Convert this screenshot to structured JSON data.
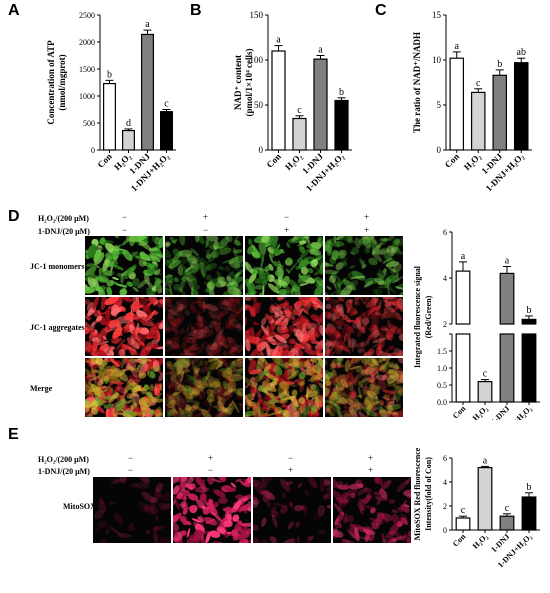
{
  "panels": {
    "A": {
      "label": "A",
      "ylabel": [
        "Concentration of ATP",
        "(nmol/mgprot)"
      ],
      "categories": [
        "Con",
        "H₂O₂",
        "1-DNJ",
        "1-DNJ+H₂O₂"
      ],
      "yticks": [
        "0",
        "500",
        "1000",
        "1500",
        "2000",
        "2500"
      ],
      "letters": [
        "b",
        "d",
        "a",
        "c"
      ],
      "colors": [
        "#ffffff",
        "#d3d3d3",
        "#808080",
        "#000000"
      ]
    },
    "B": {
      "label": "B",
      "ylabel": [
        "NAD⁺ content",
        "(pmol/1×10⁴ cells)"
      ],
      "categories": [
        "Con",
        "H₂O₂",
        "1-DNJ",
        "1-DNJ+H₂O₂"
      ],
      "yticks": [
        "0",
        "50",
        "100",
        "150"
      ],
      "letters": [
        "a",
        "c",
        "a",
        "b"
      ],
      "colors": [
        "#ffffff",
        "#d3d3d3",
        "#808080",
        "#000000"
      ]
    },
    "C": {
      "label": "C",
      "ylabel": [
        "The ratio of NAD⁺/NADH"
      ],
      "categories": [
        "Con",
        "H₂O₂",
        "1-DNJ",
        "1-DNJ+H₂O₂"
      ],
      "yticks": [
        "0",
        "5",
        "10",
        "15"
      ],
      "letters": [
        "a",
        "c",
        "b",
        "ab"
      ],
      "colors": [
        "#ffffff",
        "#d3d3d3",
        "#808080",
        "#000000"
      ]
    },
    "D": {
      "label": "D",
      "conditions": [
        "H₂O₂/(200 μM)",
        "1-DNJ/(20 μM)"
      ],
      "signs": [
        [
          "−",
          "+",
          "−",
          "+"
        ],
        [
          "−",
          "−",
          "+",
          "+"
        ]
      ],
      "rows": [
        "JC-1 monomers",
        "JC-1 aggregates",
        "Merge"
      ],
      "chart_ylabel": [
        "Integrated fluorescence signal",
        "(Red/Green)"
      ],
      "categories": [
        "Con",
        "H₂O₂",
        "1-DNJ",
        "1-DNJ+H₂O₂"
      ],
      "yticks_low": [
        "0.0",
        "0.5",
        "1.0",
        "1.5",
        "2"
      ],
      "yticks_high": [
        "2",
        "4",
        "6"
      ],
      "letters": [
        "a",
        "c",
        "a",
        "b"
      ],
      "colors": [
        "#ffffff",
        "#d3d3d3",
        "#808080",
        "#000000"
      ]
    },
    "E": {
      "label": "E",
      "conditions": [
        "H₂O₂/(200 μM)",
        "1-DNJ/(20 μM)"
      ],
      "signs": [
        [
          "−",
          "+",
          "−",
          "+"
        ],
        [
          "−",
          "−",
          "+",
          "+"
        ]
      ],
      "rows": [
        "MitoSOX"
      ],
      "chart_ylabel": [
        "MitoSOX Red fluorescence",
        "Intensity(fold of Con)"
      ],
      "categories": [
        "Con",
        "H₂O₂",
        "1-DNJ",
        "1-DNJ+H₂O₂"
      ],
      "yticks": [
        "0",
        "2",
        "4",
        "6"
      ],
      "letters": [
        "c",
        "a",
        "c",
        "b"
      ],
      "colors": [
        "#ffffff",
        "#d3d3d3",
        "#808080",
        "#000000"
      ]
    }
  },
  "chart_data": [
    {
      "type": "bar",
      "panel": "A",
      "categories": [
        "Con",
        "H₂O₂",
        "1-DNJ",
        "1-DNJ+H₂O₂"
      ],
      "values": [
        1230,
        360,
        2140,
        710
      ],
      "errors": [
        60,
        30,
        80,
        40
      ],
      "ylim": [
        0,
        2500
      ]
    },
    {
      "type": "bar",
      "panel": "B",
      "categories": [
        "Con",
        "H₂O₂",
        "1-DNJ",
        "1-DNJ+H₂O₂"
      ],
      "values": [
        110,
        35,
        101,
        55
      ],
      "errors": [
        6,
        3,
        4,
        3
      ],
      "ylim": [
        0,
        150
      ]
    },
    {
      "type": "bar",
      "panel": "C",
      "categories": [
        "Con",
        "H₂O₂",
        "1-DNJ",
        "1-DNJ+H₂O₂"
      ],
      "values": [
        10.2,
        6.4,
        8.3,
        9.7
      ],
      "errors": [
        0.7,
        0.4,
        0.6,
        0.5
      ],
      "ylim": [
        0,
        15
      ]
    },
    {
      "type": "bar",
      "panel": "D",
      "categories": [
        "Con",
        "H₂O₂",
        "1-DNJ",
        "1-DNJ+H₂O₂"
      ],
      "values": [
        4.3,
        0.6,
        4.2,
        2.2
      ],
      "errors": [
        0.4,
        0.06,
        0.3,
        0.15
      ],
      "ylim_low": [
        0,
        2
      ],
      "ylim_high": [
        2,
        6
      ],
      "axis_break": true
    },
    {
      "type": "bar",
      "panel": "E",
      "categories": [
        "Con",
        "H₂O₂",
        "1-DNJ",
        "1-DNJ+H₂O₂"
      ],
      "values": [
        1.0,
        5.2,
        1.15,
        2.75
      ],
      "errors": [
        0.15,
        0.1,
        0.2,
        0.35
      ],
      "ylim": [
        0,
        6
      ]
    }
  ]
}
